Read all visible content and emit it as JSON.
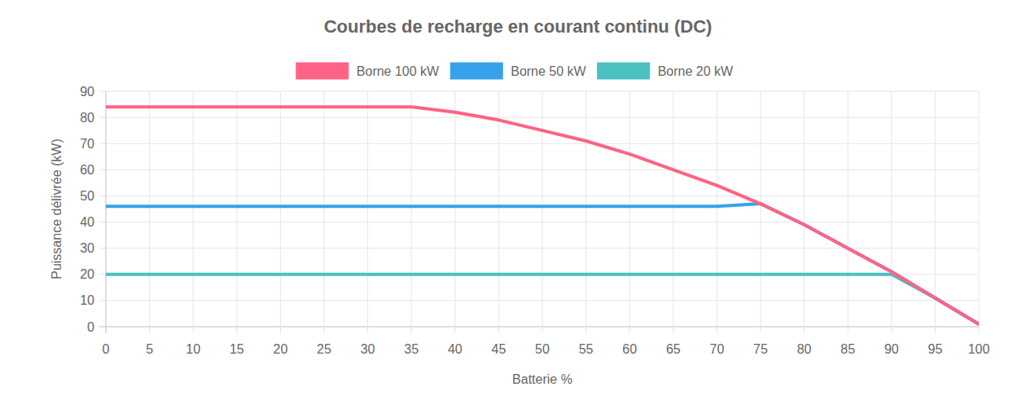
{
  "chart_data": {
    "type": "line",
    "title": "Courbes de recharge en courant continu (DC)",
    "x_label": "Batterie %",
    "y_label": "Puissance délivrée (kW)",
    "x": [
      0,
      5,
      10,
      15,
      20,
      25,
      30,
      35,
      40,
      45,
      50,
      55,
      60,
      65,
      70,
      75,
      80,
      85,
      90,
      95,
      100
    ],
    "series": [
      {
        "name": "Borne 100 kW",
        "color": "#ff6384",
        "values": [
          84,
          84,
          84,
          84,
          84,
          84,
          84,
          84,
          82,
          79,
          75,
          71,
          66,
          60,
          54,
          47,
          39,
          30,
          21,
          11,
          1
        ]
      },
      {
        "name": "Borne 50 kW",
        "color": "#36a2eb",
        "values": [
          46,
          46,
          46,
          46,
          46,
          46,
          46,
          46,
          46,
          46,
          46,
          46,
          46,
          46,
          46,
          47,
          39,
          30,
          21,
          11,
          1
        ]
      },
      {
        "name": "Borne 20 kW",
        "color": "#4bc0c0",
        "values": [
          20,
          20,
          20,
          20,
          20,
          20,
          20,
          20,
          20,
          20,
          20,
          20,
          20,
          20,
          20,
          20,
          20,
          20,
          20,
          11,
          1
        ]
      }
    ],
    "xlim": [
      0,
      100
    ],
    "xticks": [
      0,
      5,
      10,
      15,
      20,
      25,
      30,
      35,
      40,
      45,
      50,
      55,
      60,
      65,
      70,
      75,
      80,
      85,
      90,
      95,
      100
    ],
    "ylim": [
      0,
      90
    ],
    "yticks": [
      0,
      10,
      20,
      30,
      40,
      50,
      60,
      70,
      80,
      90
    ],
    "grid": true,
    "legend": "top"
  }
}
